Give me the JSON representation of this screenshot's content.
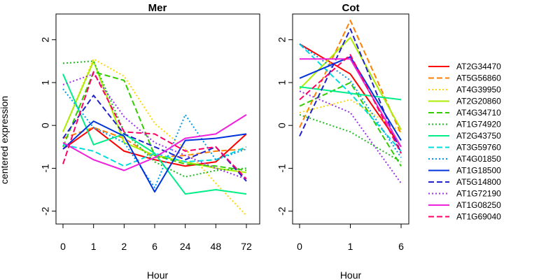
{
  "chart_data": {
    "type": "line",
    "ylabel": "centered expression",
    "ylim": [
      -2.3,
      2.6
    ],
    "yticks": [
      -2,
      -1,
      0,
      1,
      2
    ],
    "series_styles": [
      {
        "name": "AT2G34470",
        "color": "#ff0000",
        "dash": "solid"
      },
      {
        "name": "AT5G56860",
        "color": "#ff7f00",
        "dash": "dashed"
      },
      {
        "name": "AT4G39950",
        "color": "#ffd700",
        "dash": "dotted"
      },
      {
        "name": "AT2G20860",
        "color": "#aaee00",
        "dash": "solid"
      },
      {
        "name": "AT4G34710",
        "color": "#33cc00",
        "dash": "dashed"
      },
      {
        "name": "AT1G74920",
        "color": "#22bb22",
        "dash": "dotted"
      },
      {
        "name": "AT2G43750",
        "color": "#00ee88",
        "dash": "solid"
      },
      {
        "name": "AT3G59760",
        "color": "#00dddd",
        "dash": "dashed"
      },
      {
        "name": "AT4G01850",
        "color": "#0099ee",
        "dash": "dotted"
      },
      {
        "name": "AT1G18500",
        "color": "#0033dd",
        "dash": "solid"
      },
      {
        "name": "AT5G14800",
        "color": "#2222cc",
        "dash": "dashed"
      },
      {
        "name": "AT1G72190",
        "color": "#9933ee",
        "dash": "dotted"
      },
      {
        "name": "AT1G08250",
        "color": "#ee22dd",
        "dash": "solid"
      },
      {
        "name": "AT1G69040",
        "color": "#ff0066",
        "dash": "dashed"
      }
    ],
    "panels": [
      {
        "title": "Mer",
        "xlabel": "Hour",
        "categories": [
          "0",
          "1",
          "2",
          "6",
          "24",
          "48",
          "72"
        ],
        "series": [
          {
            "name": "AT2G34470",
            "values": [
              -0.55,
              -0.05,
              -0.6,
              -0.8,
              -0.95,
              -0.85,
              -0.2
            ]
          },
          {
            "name": "AT5G56860",
            "values": [
              -0.3,
              -0.05,
              -0.3,
              -0.75,
              -0.7,
              -0.6,
              -0.55
            ]
          },
          {
            "name": "AT4G39950",
            "values": [
              -0.15,
              1.55,
              1.15,
              0.05,
              -0.55,
              -1.35,
              -2.1
            ]
          },
          {
            "name": "AT2G20860",
            "values": [
              -0.15,
              1.5,
              -0.4,
              -0.7,
              -0.85,
              -1.0,
              -1.1
            ]
          },
          {
            "name": "AT4G34710",
            "values": [
              -0.5,
              1.25,
              1.05,
              -0.7,
              -0.9,
              -0.95,
              -1.05
            ]
          },
          {
            "name": "AT1G74920",
            "values": [
              1.45,
              1.5,
              -0.15,
              -0.85,
              -1.2,
              -1.05,
              -1.0
            ]
          },
          {
            "name": "AT2G43750",
            "values": [
              1.2,
              -0.45,
              -0.2,
              -0.65,
              -1.6,
              -1.5,
              -1.6
            ]
          },
          {
            "name": "AT3G59760",
            "values": [
              -0.45,
              -0.6,
              -0.95,
              -0.65,
              -0.85,
              -0.8,
              -0.5
            ]
          },
          {
            "name": "AT4G01850",
            "values": [
              0.85,
              -0.05,
              -0.4,
              -1.45,
              0.25,
              -0.8,
              -0.55
            ]
          },
          {
            "name": "AT1G18500",
            "values": [
              -0.55,
              0.1,
              -0.25,
              -1.55,
              -0.35,
              -0.3,
              -0.2
            ]
          },
          {
            "name": "AT5G14800",
            "values": [
              -0.3,
              0.7,
              -0.2,
              -0.5,
              -0.8,
              -0.5,
              -1.3
            ]
          },
          {
            "name": "AT1G72190",
            "values": [
              0.95,
              1.2,
              0.2,
              -0.4,
              -0.7,
              -1.0,
              -1.25
            ]
          },
          {
            "name": "AT1G08250",
            "values": [
              -0.4,
              -0.8,
              -1.05,
              -0.75,
              -0.3,
              -0.2,
              0.25
            ]
          },
          {
            "name": "AT1G69040",
            "values": [
              -0.9,
              1.25,
              -0.15,
              -0.2,
              -0.6,
              -0.5,
              -1.25
            ]
          }
        ]
      },
      {
        "title": "Cot",
        "xlabel": "Hour",
        "categories": [
          "0",
          "1",
          "6"
        ],
        "series": [
          {
            "name": "AT2G34470",
            "values": [
              1.9,
              1.2,
              -0.5
            ]
          },
          {
            "name": "AT5G56860",
            "values": [
              -0.05,
              2.45,
              -0.2
            ]
          },
          {
            "name": "AT4G39950",
            "values": [
              0.3,
              0.6,
              -0.15
            ]
          },
          {
            "name": "AT2G20860",
            "values": [
              0.85,
              2.05,
              -0.1
            ]
          },
          {
            "name": "AT4G34710",
            "values": [
              0.45,
              1.0,
              -0.95
            ]
          },
          {
            "name": "AT1G74920",
            "values": [
              0.25,
              -0.15,
              -0.85
            ]
          },
          {
            "name": "AT2G43750",
            "values": [
              0.9,
              0.75,
              0.6
            ]
          },
          {
            "name": "AT3G59760",
            "values": [
              1.9,
              0.75,
              -0.6
            ]
          },
          {
            "name": "AT4G01850",
            "values": [
              1.9,
              1.05,
              -0.75
            ]
          },
          {
            "name": "AT1G18500",
            "values": [
              1.1,
              1.6,
              -0.35
            ]
          },
          {
            "name": "AT5G14800",
            "values": [
              -0.25,
              2.25,
              -0.65
            ]
          },
          {
            "name": "AT1G72190",
            "values": [
              0.8,
              0.3,
              -1.35
            ]
          },
          {
            "name": "AT1G08250",
            "values": [
              1.55,
              1.55,
              -0.5
            ]
          },
          {
            "name": "AT1G69040",
            "values": [
              0.6,
              1.65,
              -0.65
            ]
          }
        ]
      }
    ]
  }
}
